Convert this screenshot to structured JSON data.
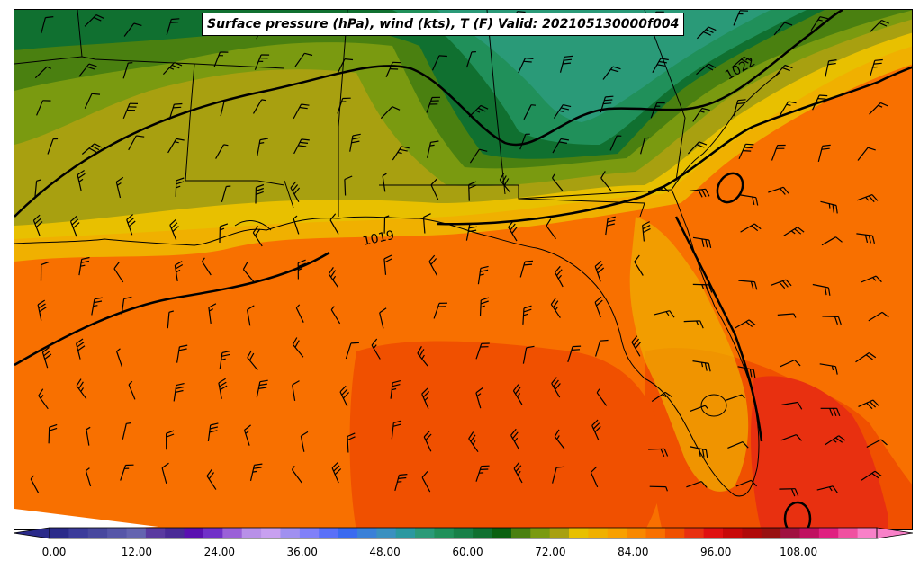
{
  "title": "Surface pressure (hPa), wind (kts), T (F) Valid: 202105130000f004",
  "isobar_labels": [
    "1019",
    "1022"
  ],
  "colorbar": {
    "tick_labels": [
      "0.00",
      "12.00",
      "24.00",
      "36.00",
      "48.00",
      "60.00",
      "72.00",
      "84.00",
      "96.00",
      "108.00"
    ],
    "colors": [
      "#2a2a8a",
      "#3b3b9a",
      "#48489e",
      "#5656a8",
      "#6464b0",
      "#5a3aa0",
      "#4a2a96",
      "#5a10b0",
      "#7030c8",
      "#9a60d8",
      "#b890e8",
      "#c8a0f0",
      "#a090f0",
      "#8080f8",
      "#5a70f8",
      "#3a6af0",
      "#3a80d8",
      "#3a90c0",
      "#2a98a0",
      "#2a9a78",
      "#20905a",
      "#188048",
      "#107030",
      "#0a6010",
      "#4a8010",
      "#7a9a10",
      "#a8a010",
      "#e8c000",
      "#f0b000",
      "#f8a000",
      "#f88800",
      "#f87000",
      "#f05000",
      "#e83010",
      "#e01010",
      "#c80808",
      "#b00808",
      "#981010",
      "#a01040",
      "#c01060",
      "#e02080",
      "#f050a0",
      "#f880c8"
    ]
  },
  "icons": {
    "wind_barb": "wind-barb-icon"
  },
  "layers": {
    "temperature_fill": "temperature",
    "isobars": "pressure",
    "boundaries": "coast-and-state-lines",
    "wind_barbs": "wind"
  }
}
